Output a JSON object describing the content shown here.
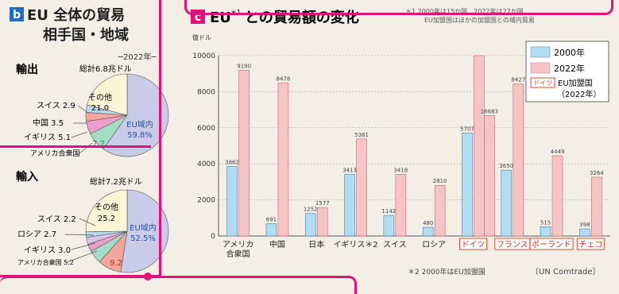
{
  "panel_b": {
    "letter": "b",
    "title_line1": "EU 全体の貿易",
    "title_line2": "相手国・地域",
    "year_note": "─2022年─"
  },
  "panel_c": {
    "letter": "c",
    "title_pre": "EU",
    "title_sup": "＊1",
    "title_post": "との貿易額の変化",
    "footnote1_line1": "＊1 2000年は15か国、2022年は27か国",
    "footnote1_line2": "EU加盟国はほかの加盟国との域内貿易",
    "footnote2": "＊2 2000年はEU加盟国",
    "source": "〔UN Comtrade〕"
  },
  "chart_data": [
    {
      "type": "pie",
      "heading": "輸出",
      "total": "総計6.8兆ドル",
      "slices": [
        {
          "label": "EU域内",
          "value": 59.8,
          "color": "#c8cce9"
        },
        {
          "label": "アメリカ合衆国",
          "value": 7.7,
          "color": "#a6dbc6"
        },
        {
          "label": "イギリス",
          "value": 5.1,
          "color": "#eaa0c8"
        },
        {
          "label": "中国",
          "value": 3.5,
          "color": "#f3a79c"
        },
        {
          "label": "スイス",
          "value": 2.9,
          "color": "#b7daf0"
        },
        {
          "label": "その他",
          "value": 21.0,
          "color": "#fbf5d6"
        }
      ],
      "outer_labels": [
        "スイス 2.9",
        "中国 3.5",
        "イギリス 5.1",
        "アメリカ合衆国"
      ],
      "inner_labels": {
        "eu": "EU域内",
        "eu_value": "59.8%",
        "other": "その他",
        "other_value": "21.0",
        "usa_value": "7.7"
      }
    },
    {
      "type": "pie",
      "heading": "輸入",
      "total": "総計7.2兆ドル",
      "slices": [
        {
          "label": "EU域内",
          "value": 52.5,
          "color": "#c8cce9"
        },
        {
          "label": "中国",
          "value": 9.2,
          "color": "#f3a79c"
        },
        {
          "label": "アメリカ合衆国",
          "value": 5.2,
          "color": "#a6dbc6"
        },
        {
          "label": "イギリス",
          "value": 3.0,
          "color": "#eaa0c8"
        },
        {
          "label": "ロシア",
          "value": 2.7,
          "color": "#d8c6ec"
        },
        {
          "label": "スイス",
          "value": 2.2,
          "color": "#b7daf0"
        },
        {
          "label": "その他",
          "value": 25.2,
          "color": "#fbf5d6"
        }
      ],
      "outer_labels": [
        "スイス 2.2",
        "ロシア 2.7",
        "イギリス 3.0",
        "アメリカ合衆国 5.2"
      ],
      "inner_labels": {
        "eu": "EU域内",
        "eu_value": "52.5%",
        "other": "その他",
        "other_value": "25.2",
        "china_value": "9.2"
      }
    },
    {
      "type": "bar",
      "ylabel": "億ドル",
      "ylim": [
        0,
        10000
      ],
      "yticks": [
        0,
        2000,
        4000,
        6000,
        8000,
        10000
      ],
      "categories": [
        "アメリカ合衆国",
        "中国",
        "日本",
        "イギリス",
        "スイス",
        "ロシア",
        "ドイツ",
        "フランス",
        "ポーランド",
        "チェコ"
      ],
      "category_display": [
        [
          "アメリカ",
          "合衆国"
        ],
        [
          "中国"
        ],
        [
          "日本"
        ],
        [
          "イギリス＊2"
        ],
        [
          "スイス"
        ],
        [
          "ロシア"
        ],
        [
          "ドイツ"
        ],
        [
          "フランス"
        ],
        [
          "ポーランド"
        ],
        [
          "チェコ"
        ]
      ],
      "eu_members": [
        false,
        false,
        false,
        false,
        false,
        false,
        true,
        true,
        true,
        true
      ],
      "series": [
        {
          "name": "2000年",
          "values": [
            3862,
            691,
            1252,
            3413,
            1142,
            480,
            5707,
            3650,
            515,
            398
          ],
          "color": "#b2dcf1"
        },
        {
          "name": "2022年",
          "values": [
            9190,
            8478,
            1577,
            5381,
            3418,
            2810,
            10000,
            8427,
            4449,
            3264
          ],
          "color": "#f7c4c6"
        },
        {
          "name": "EU加盟国（2022年）",
          "values": [
            null,
            null,
            null,
            null,
            null,
            null,
            6683,
            null,
            null,
            null
          ],
          "color": "#f7c4c6"
        }
      ],
      "value_labels": {
        "s2000": [
          "3862",
          "691",
          "1252",
          "3413",
          "1142",
          "480",
          "5707",
          "3650",
          "515",
          "398"
        ],
        "s2022": [
          "9190",
          "8478",
          "1577",
          "5381",
          "3418",
          "2810",
          "",
          "8427",
          "4449",
          "3264"
        ],
        "germany_extra": "16683"
      },
      "legend": {
        "placement": "top-right",
        "items": [
          "2000年",
          "2022年"
        ],
        "eu_chip": "ドイツ",
        "eu_text_line1": "EU加盟国",
        "eu_text_line2": "（2022年）"
      }
    }
  ]
}
